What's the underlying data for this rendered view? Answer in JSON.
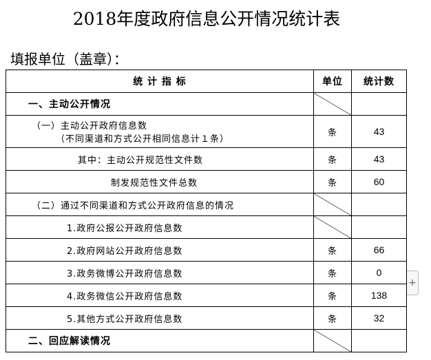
{
  "title": "2018年度政府信息公开情况统计表",
  "unit_label": "填报单位（盖章）：",
  "headers": {
    "indicator": "统 计 指 标",
    "unit": "单位",
    "count": "统计数"
  },
  "rows": [
    {
      "label": "一、主动公开情况",
      "unit": "",
      "value": ""
    },
    {
      "label": "（一）主动公开政府信息数",
      "label2": "（不同渠道和方式公开相同信息计１条）",
      "unit": "条",
      "value": "43"
    },
    {
      "label": "其中：主动公开规范性文件数",
      "unit": "条",
      "value": "43"
    },
    {
      "label": "制发规范性文件总数",
      "unit": "条",
      "value": "60"
    },
    {
      "label": "（二）通过不同渠道和方式公开政府信息的情况",
      "unit": "",
      "value": ""
    },
    {
      "label": "1.政府公报公开政府信息数",
      "unit": "",
      "value": ""
    },
    {
      "label": "2.政府网站公开政府信息数",
      "unit": "条",
      "value": "66"
    },
    {
      "label": "3.政务微博公开政府信息数",
      "unit": "条",
      "value": "0"
    },
    {
      "label": "4.政务微信公开政府信息数",
      "unit": "条",
      "value": "138"
    },
    {
      "label": "5.其他方式公开政府信息数",
      "unit": "条",
      "value": "32"
    },
    {
      "label": "二、回应解读情况",
      "unit": "",
      "value": ""
    }
  ],
  "plus_button": "+"
}
